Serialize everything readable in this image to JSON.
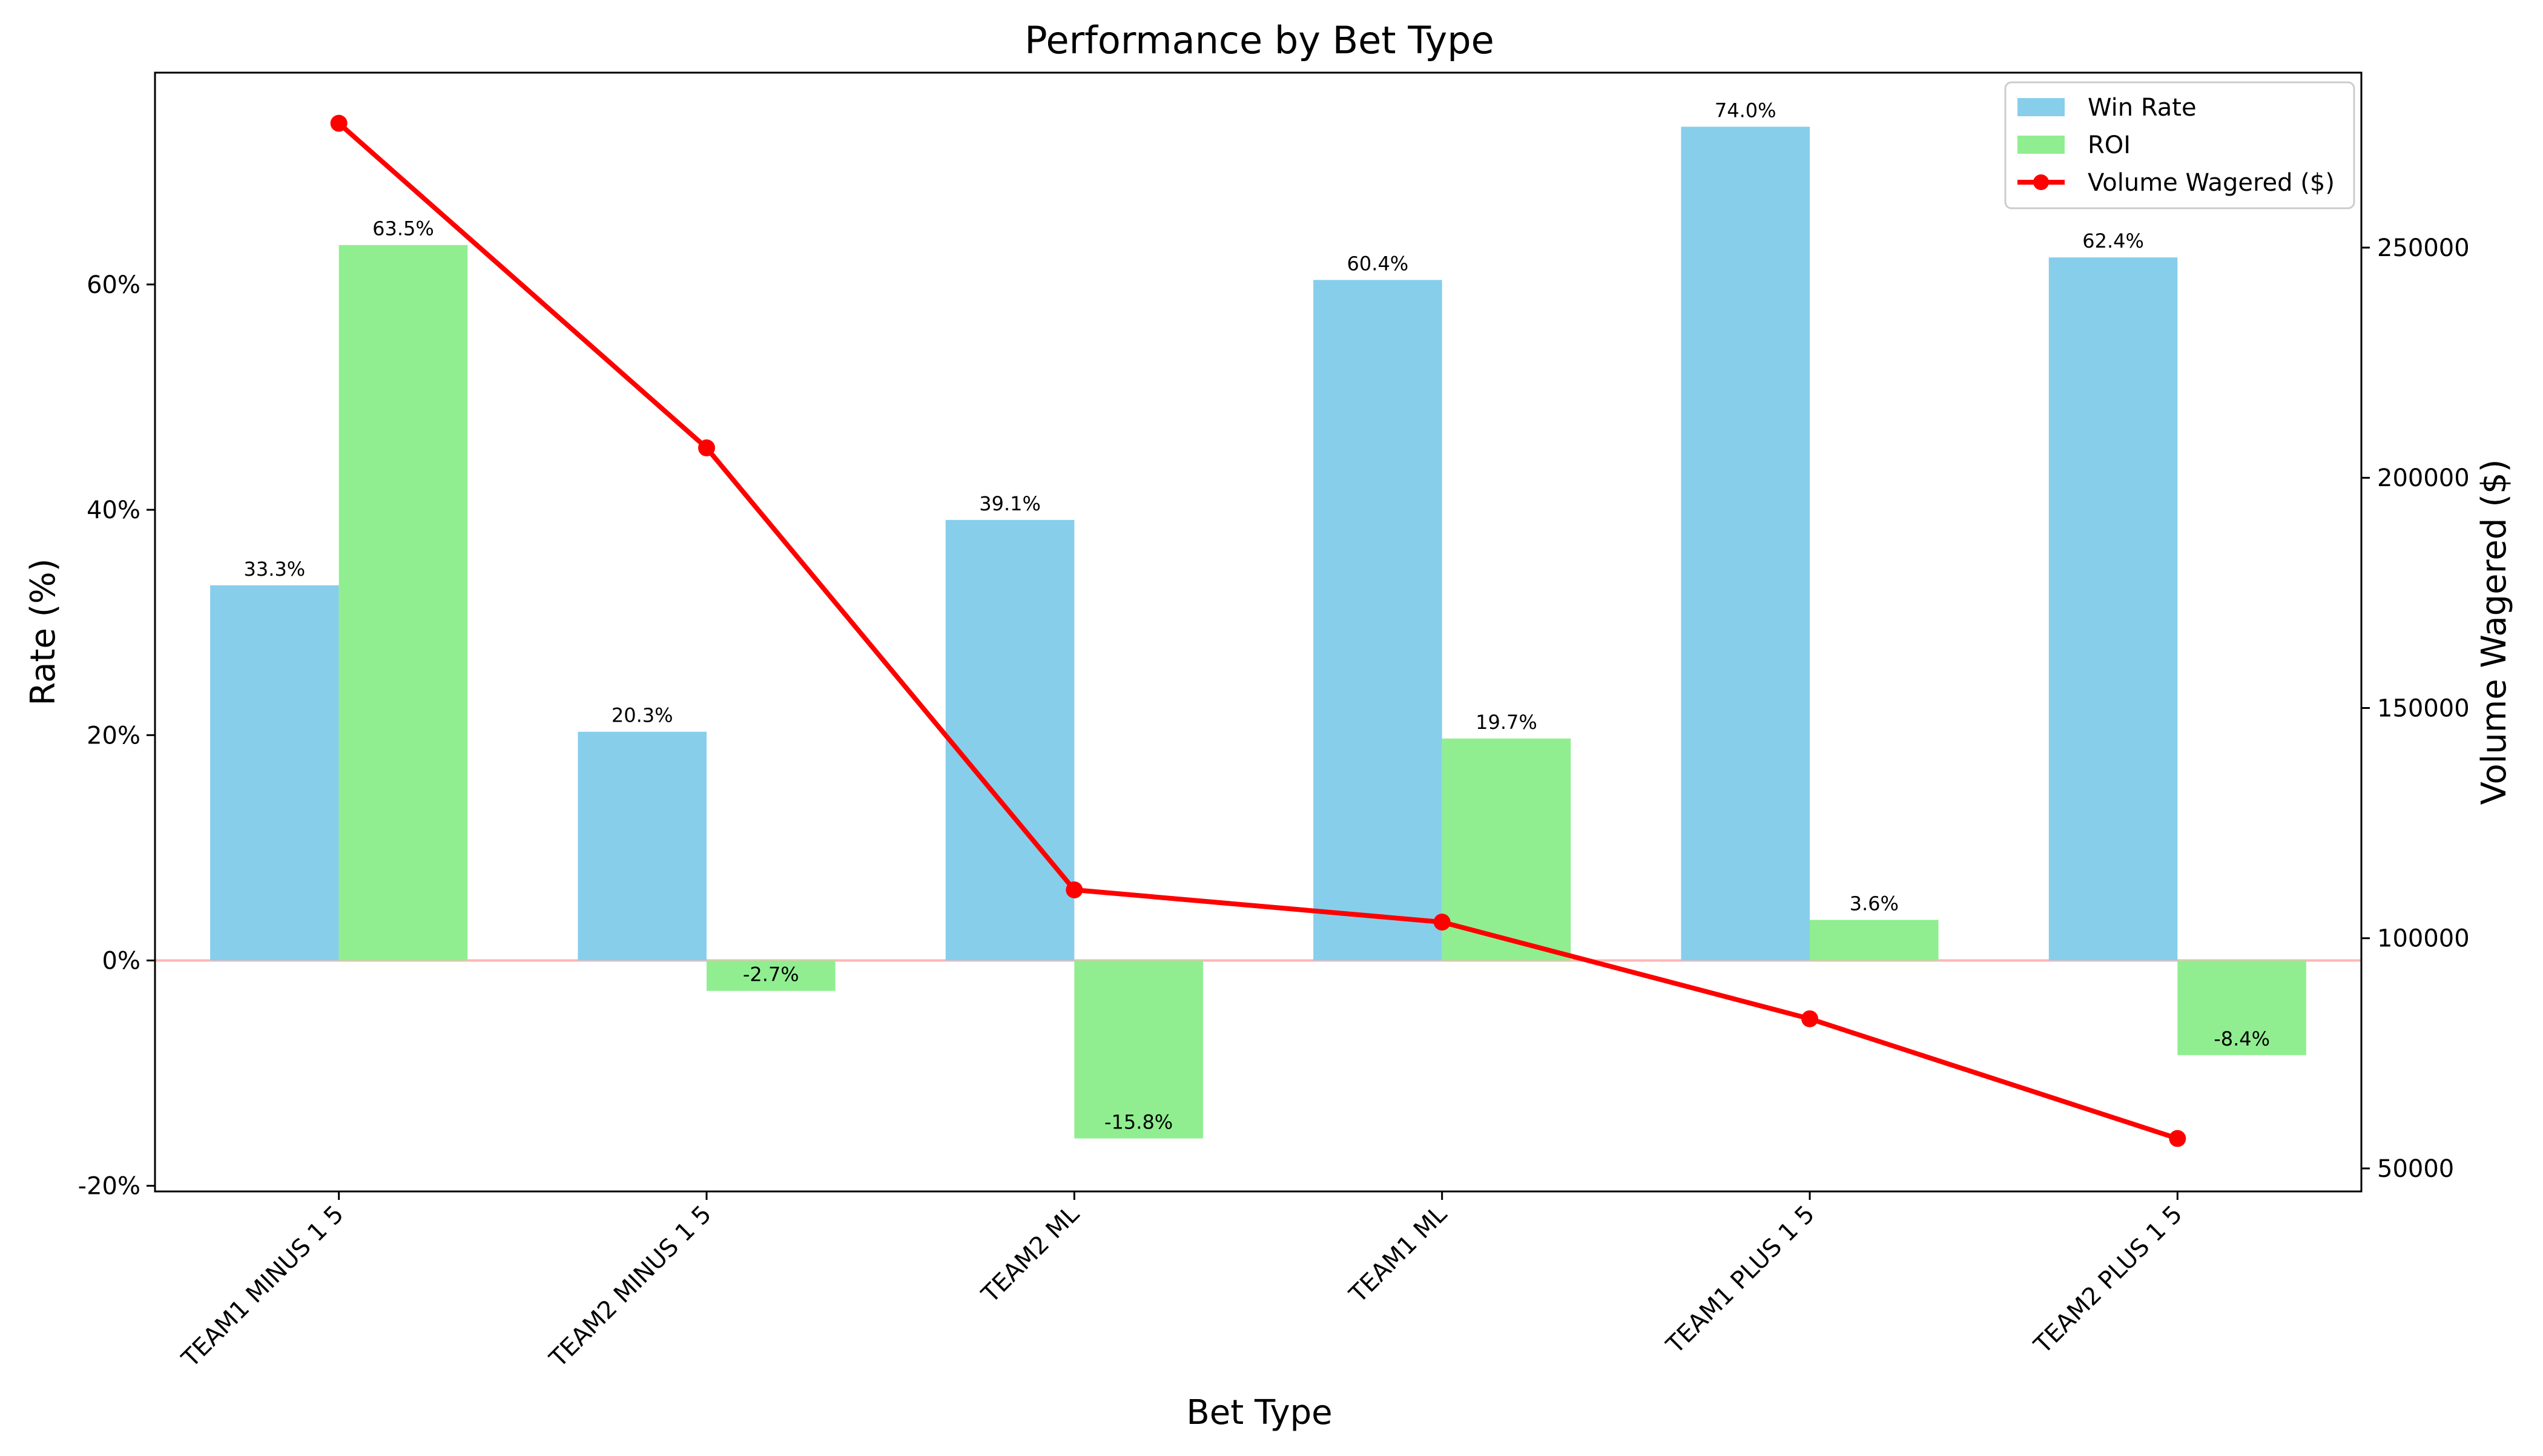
{
  "chart_data": {
    "type": "bar",
    "title": "Performance by Bet Type",
    "xlabel": "Bet Type",
    "ylabel": "Rate (%)",
    "y2label": "Volume Wagered ($)",
    "categories": [
      "TEAM1 MINUS 1 5",
      "TEAM2 MINUS 1 5",
      "TEAM2 ML",
      "TEAM1 ML",
      "TEAM1 PLUS 1 5",
      "TEAM2 PLUS 1 5"
    ],
    "series": [
      {
        "name": "Win Rate",
        "kind": "bar",
        "color": "#87ceeb",
        "values": [
          33.3,
          20.3,
          39.1,
          60.4,
          74.0,
          62.4
        ],
        "labels": [
          "33.3%",
          "20.3%",
          "39.1%",
          "60.4%",
          "74.0%",
          "62.4%"
        ]
      },
      {
        "name": "ROI",
        "kind": "bar",
        "color": "#90ee90",
        "values": [
          63.5,
          -2.7,
          -15.8,
          19.7,
          3.6,
          -8.4
        ],
        "labels": [
          "63.5%",
          "-2.7%",
          "-15.8%",
          "19.7%",
          "3.6%",
          "-8.4%"
        ]
      },
      {
        "name": "Volume Wagered ($)",
        "kind": "line",
        "axis": "right",
        "color": "#ff0000",
        "values": [
          277000,
          206500,
          110500,
          103500,
          82500,
          56500
        ]
      }
    ],
    "ylim": [
      -20.5,
      78.8
    ],
    "yticks": [
      -20,
      0,
      20,
      40,
      60
    ],
    "ytick_labels": [
      "-20%",
      "0%",
      "20%",
      "40%",
      "60%"
    ],
    "y2lim": [
      45000,
      288000
    ],
    "y2ticks": [
      50000,
      100000,
      150000,
      200000,
      250000
    ],
    "y2tick_labels": [
      "50000",
      "100000",
      "150000",
      "200000",
      "250000"
    ],
    "zero_line_color": "#ffb6b6",
    "legend_position": "top-right",
    "grid": false
  }
}
